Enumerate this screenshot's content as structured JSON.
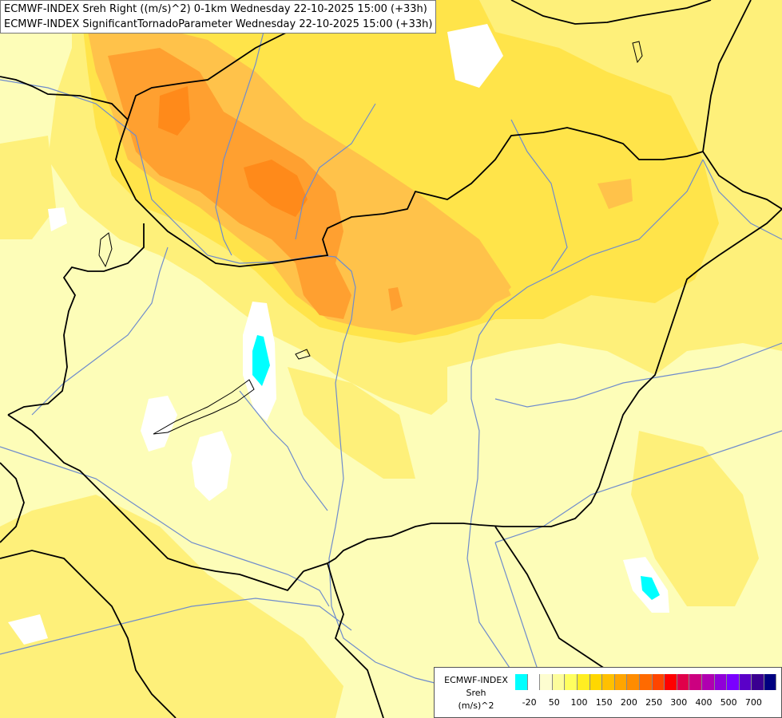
{
  "titles": {
    "line1": "ECMWF-INDEX Sreh Right ((m/s)^2) 0-1km Wednesday 22-10-2025 15:00 (+33h)",
    "line2": "ECMWF-INDEX SignificantTornadoParameter Wednesday 22-10-2025 15:00 (+33h)"
  },
  "legend": {
    "line1": "ECMWF-INDEX",
    "line2": "Sreh",
    "line3": "(m/s)^2",
    "colors": [
      "#00ffff",
      "#ffffff",
      "#fdfdd0",
      "#fdfd9c",
      "#ffff60",
      "#ffee22",
      "#ffd700",
      "#ffc000",
      "#ffa500",
      "#ff8c00",
      "#ff6a00",
      "#ff4500",
      "#ff0000",
      "#e0004a",
      "#cc0080",
      "#b000b0",
      "#9000d8",
      "#7a00ff",
      "#5a00c8",
      "#3a0090",
      "#000080"
    ],
    "ticks": [
      "-20",
      "50",
      "100",
      "150",
      "200",
      "250",
      "300",
      "400",
      "500",
      "700"
    ]
  },
  "colors": {
    "background": "#fdfdb8",
    "yellow": "#fef07a",
    "yellow_strong": "#ffe44a",
    "orange": "#ffc24a",
    "orange_strong": "#ffa030",
    "orange_max": "#ff8a1a",
    "border": "#000000",
    "river": "#6f8ccc",
    "cyan": "#00ffff"
  }
}
